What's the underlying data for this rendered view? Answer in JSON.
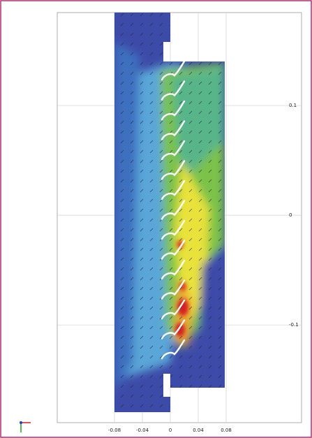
{
  "chart_data": {
    "type": "contour",
    "xlim": [
      -0.162,
      0.188
    ],
    "ylim": [
      -0.189,
      0.1847
    ],
    "xticks": [
      -0.08,
      -0.04,
      0,
      0.04,
      0.08
    ],
    "yticks": [
      0.1,
      0,
      -0.1
    ],
    "grid": true
  }
}
